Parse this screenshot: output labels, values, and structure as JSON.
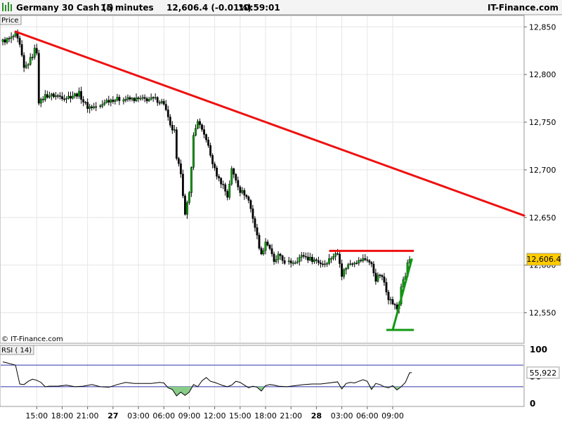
{
  "header": {
    "instrument": "Germany 30 Cash (-)",
    "timeframe": "15 minutes",
    "last_quote": "12,606.4 (-0.01%)",
    "time": "10:59:01",
    "brand": "IT-Finance.com"
  },
  "price_panel": {
    "label": "Price",
    "watermark": "© IT-Finance.com"
  },
  "rsi_panel": {
    "label": "RSI ( 14)"
  },
  "colors": {
    "up_candle": "#00a000",
    "down_candle": "#000000",
    "resistance": "#ee1111",
    "support": "#119911",
    "rsi_line": "#000000",
    "rsi_bands": "#3333aa",
    "rsi_oversold_fill": "#88cc88",
    "price_label_bg": "#ffcc00"
  },
  "chart_data": [
    {
      "type": "candlestick",
      "title": "Germany 30 Cash (-)",
      "ylabel": "Price",
      "ylim": [
        12518,
        12862
      ],
      "yticks": [
        12550,
        12600,
        12650,
        12700,
        12750,
        12800,
        12850
      ],
      "ytick_labels": [
        "12,550",
        "12,600",
        "12,650",
        "12,700",
        "12,750",
        "12,800",
        "12,850"
      ],
      "x_range": [
        0,
        246
      ],
      "x_ticks": [
        {
          "x": 16,
          "label": "15:00"
        },
        {
          "x": 28,
          "label": "18:00"
        },
        {
          "x": 40,
          "label": "21:00"
        },
        {
          "x": 52,
          "label": "27",
          "bold": true
        },
        {
          "x": 64,
          "label": "03:00"
        },
        {
          "x": 76,
          "label": "06:00"
        },
        {
          "x": 88,
          "label": "09:00"
        },
        {
          "x": 100,
          "label": "12:00"
        },
        {
          "x": 112,
          "label": "15:00"
        },
        {
          "x": 124,
          "label": "18:00"
        },
        {
          "x": 136,
          "label": "21:00"
        },
        {
          "x": 148,
          "label": "28",
          "bold": true
        },
        {
          "x": 160,
          "label": "03:00"
        },
        {
          "x": 172,
          "label": "06:00"
        },
        {
          "x": 184,
          "label": "09:00"
        }
      ],
      "last_price": 12606.4,
      "last_price_label": "12,606.4",
      "close_path": [
        [
          0,
          12835
        ],
        [
          4,
          12838
        ],
        [
          6,
          12842
        ],
        [
          8,
          12830
        ],
        [
          10,
          12806
        ],
        [
          12,
          12812
        ],
        [
          14,
          12820
        ],
        [
          15,
          12826
        ],
        [
          16,
          12824
        ],
        [
          17,
          12772
        ],
        [
          18,
          12772
        ],
        [
          20,
          12778
        ],
        [
          24,
          12778
        ],
        [
          30,
          12776
        ],
        [
          36,
          12780
        ],
        [
          38,
          12772
        ],
        [
          40,
          12766
        ],
        [
          42,
          12766
        ],
        [
          46,
          12766
        ],
        [
          48,
          12772
        ],
        [
          52,
          12774
        ],
        [
          58,
          12774
        ],
        [
          62,
          12774
        ],
        [
          66,
          12774
        ],
        [
          72,
          12774
        ],
        [
          76,
          12770
        ],
        [
          77,
          12762
        ],
        [
          79,
          12745
        ],
        [
          81,
          12740
        ],
        [
          82,
          12710
        ],
        [
          84,
          12698
        ],
        [
          86,
          12652
        ],
        [
          88,
          12675
        ],
        [
          90,
          12735
        ],
        [
          92,
          12752
        ],
        [
          94,
          12740
        ],
        [
          96,
          12733
        ],
        [
          98,
          12715
        ],
        [
          100,
          12700
        ],
        [
          102,
          12690
        ],
        [
          104,
          12684
        ],
        [
          106,
          12672
        ],
        [
          108,
          12700
        ],
        [
          110,
          12690
        ],
        [
          112,
          12678
        ],
        [
          114,
          12675
        ],
        [
          116,
          12668
        ],
        [
          118,
          12650
        ],
        [
          120,
          12630
        ],
        [
          122,
          12610
        ],
        [
          124,
          12625
        ],
        [
          126,
          12618
        ],
        [
          128,
          12602
        ],
        [
          130,
          12610
        ],
        [
          132,
          12605
        ],
        [
          134,
          12602
        ],
        [
          138,
          12604
        ],
        [
          140,
          12608
        ],
        [
          142,
          12610
        ],
        [
          144,
          12607
        ],
        [
          146,
          12606
        ],
        [
          148,
          12605
        ],
        [
          150,
          12602
        ],
        [
          152,
          12602
        ],
        [
          154,
          12606
        ],
        [
          156,
          12610
        ],
        [
          158,
          12612
        ],
        [
          159,
          12604
        ],
        [
          160,
          12590
        ],
        [
          162,
          12598
        ],
        [
          164,
          12602
        ],
        [
          166,
          12604
        ],
        [
          168,
          12604
        ],
        [
          170,
          12606
        ],
        [
          172,
          12606
        ],
        [
          174,
          12600
        ],
        [
          176,
          12585
        ],
        [
          178,
          12590
        ],
        [
          180,
          12582
        ],
        [
          182,
          12566
        ],
        [
          184,
          12560
        ],
        [
          186,
          12554
        ],
        [
          187,
          12560
        ],
        [
          188,
          12578
        ],
        [
          190,
          12588
        ],
        [
          191,
          12602
        ],
        [
          192,
          12606
        ]
      ],
      "overlays": [
        {
          "type": "trendline",
          "name": "resistance",
          "color": "#ee1111",
          "points": [
            [
              6,
              12845
            ],
            [
              246,
              12652
            ]
          ]
        },
        {
          "type": "horizontal",
          "name": "resistance-level",
          "color": "#ee1111",
          "y": 12615,
          "x": [
            154,
            194
          ]
        },
        {
          "type": "horizontal",
          "name": "support-level",
          "color": "#119911",
          "y": 12532,
          "x": [
            181,
            194
          ]
        },
        {
          "type": "trendline",
          "name": "support",
          "color": "#119911",
          "points": [
            [
              184,
              12532
            ],
            [
              193,
              12606
            ]
          ]
        }
      ]
    },
    {
      "type": "line",
      "title": "RSI ( 14)",
      "ylim": [
        0,
        100
      ],
      "yticks": [
        0,
        50,
        100
      ],
      "ytick_labels": [
        "0",
        "50",
        "100"
      ],
      "bands": [
        30,
        70
      ],
      "last_value_label": "55,922",
      "values": [
        [
          0,
          76
        ],
        [
          2,
          74
        ],
        [
          4,
          72
        ],
        [
          6,
          70
        ],
        [
          8,
          35
        ],
        [
          10,
          34
        ],
        [
          12,
          40
        ],
        [
          14,
          44
        ],
        [
          16,
          42
        ],
        [
          18,
          38
        ],
        [
          20,
          30
        ],
        [
          22,
          31
        ],
        [
          26,
          31
        ],
        [
          30,
          33
        ],
        [
          34,
          30
        ],
        [
          38,
          31
        ],
        [
          42,
          34
        ],
        [
          46,
          30
        ],
        [
          50,
          29
        ],
        [
          54,
          34
        ],
        [
          58,
          38
        ],
        [
          62,
          36
        ],
        [
          66,
          36
        ],
        [
          70,
          36
        ],
        [
          74,
          38
        ],
        [
          76,
          37
        ],
        [
          78,
          28
        ],
        [
          80,
          25
        ],
        [
          82,
          13
        ],
        [
          84,
          20
        ],
        [
          86,
          14
        ],
        [
          88,
          20
        ],
        [
          90,
          34
        ],
        [
          92,
          30
        ],
        [
          94,
          41
        ],
        [
          96,
          47
        ],
        [
          98,
          40
        ],
        [
          100,
          38
        ],
        [
          102,
          35
        ],
        [
          104,
          32
        ],
        [
          106,
          30
        ],
        [
          108,
          33
        ],
        [
          110,
          40
        ],
        [
          112,
          38
        ],
        [
          114,
          33
        ],
        [
          116,
          28
        ],
        [
          118,
          31
        ],
        [
          120,
          29
        ],
        [
          122,
          22
        ],
        [
          124,
          32
        ],
        [
          126,
          34
        ],
        [
          128,
          33
        ],
        [
          130,
          31
        ],
        [
          134,
          30
        ],
        [
          138,
          32
        ],
        [
          142,
          34
        ],
        [
          146,
          35
        ],
        [
          150,
          35
        ],
        [
          154,
          37
        ],
        [
          158,
          39
        ],
        [
          160,
          26
        ],
        [
          162,
          36
        ],
        [
          164,
          38
        ],
        [
          166,
          37
        ],
        [
          168,
          40
        ],
        [
          170,
          43
        ],
        [
          172,
          40
        ],
        [
          174,
          25
        ],
        [
          176,
          36
        ],
        [
          178,
          34
        ],
        [
          180,
          30
        ],
        [
          182,
          28
        ],
        [
          184,
          32
        ],
        [
          186,
          24
        ],
        [
          188,
          30
        ],
        [
          190,
          38
        ],
        [
          192,
          56
        ],
        [
          193,
          56
        ]
      ]
    }
  ]
}
